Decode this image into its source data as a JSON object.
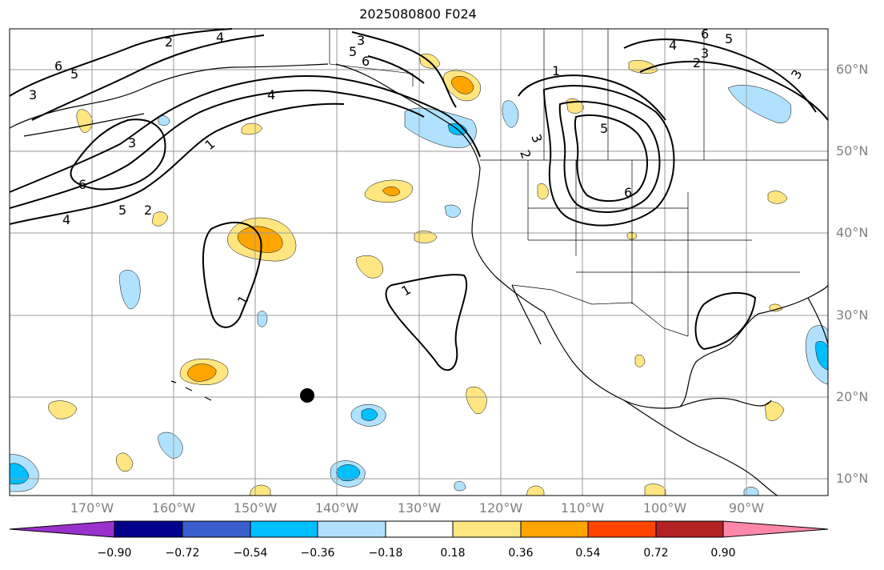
{
  "title": "2025080800 F024",
  "lat_labels": [
    "60°N",
    "50°N",
    "40°N",
    "30°N",
    "20°N",
    "10°N"
  ],
  "lon_labels": [
    "170°W",
    "160°W",
    "150°W",
    "140°W",
    "130°W",
    "120°W",
    "110°W",
    "100°W",
    "90°W"
  ],
  "colorbar": {
    "tick_labels": [
      "−0.90",
      "−0.72",
      "−0.54",
      "−0.36",
      "−0.18",
      "0.18",
      "0.36",
      "0.54",
      "0.72",
      "0.90"
    ],
    "colors": [
      "#9932cc",
      "#00008b",
      "#3a5fcd",
      "#00bfff",
      "#b0e2ff",
      "#ffffff",
      "#ffe680",
      "#ffa500",
      "#ff4500",
      "#b22222",
      "#ff88aa"
    ]
  },
  "contour_labels": [
    "1",
    "2",
    "3",
    "4",
    "5",
    "6"
  ],
  "colors": {
    "shade_yellow": "#ffe680",
    "shade_orange": "#ffa500",
    "shade_lightblue": "#b0e2ff",
    "shade_cyan": "#00bfff",
    "grid": "#999999",
    "coast": "#000000"
  },
  "marker": {
    "lon": -143.5,
    "lat": 20.0,
    "shape": "filled-circle"
  }
}
